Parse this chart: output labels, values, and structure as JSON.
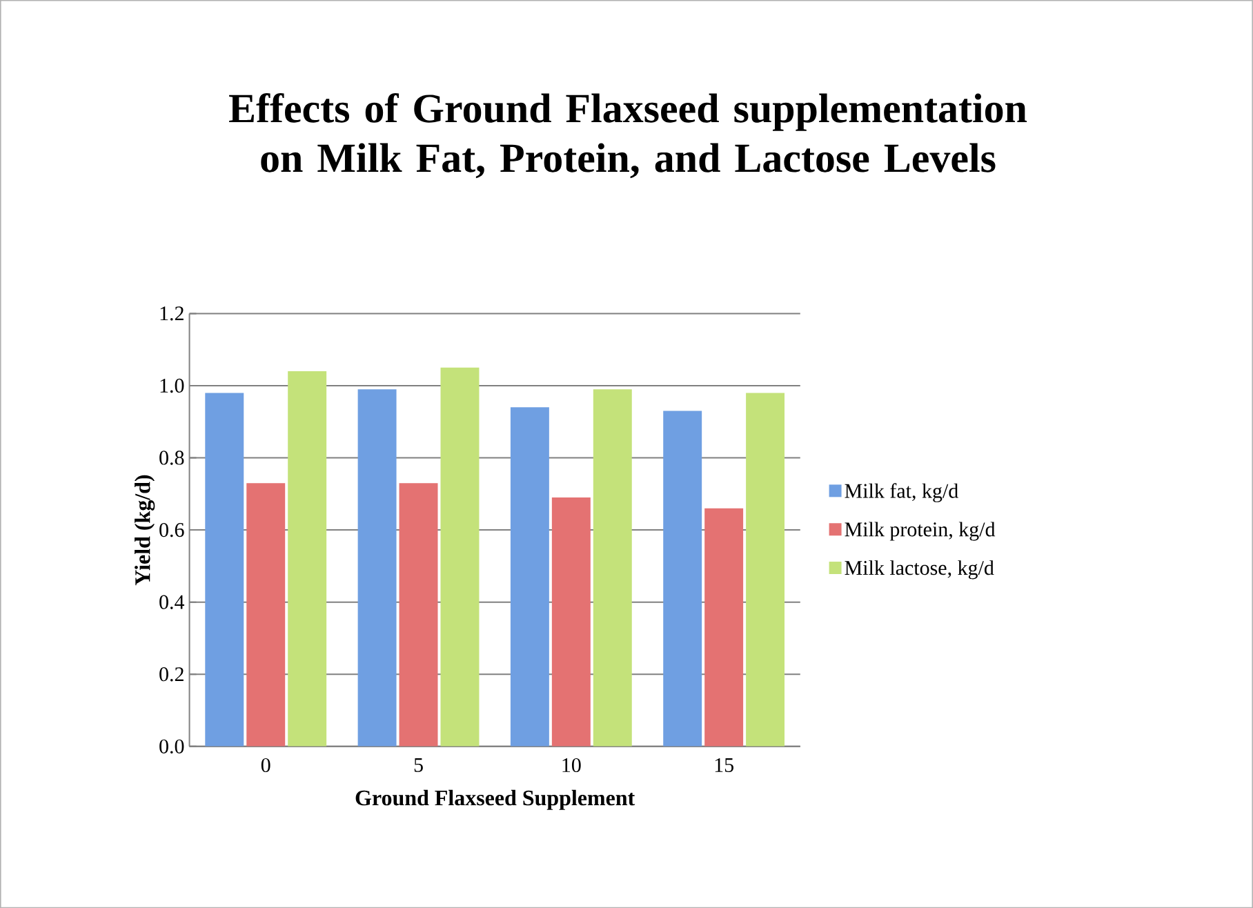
{
  "chart_data": {
    "type": "bar",
    "title": "Effects of Ground Flaxseed supplementation on Milk Fat, Protein, and Lactose Levels",
    "xlabel": "Ground Flaxseed Supplement",
    "ylabel": "Yield (kg/d)",
    "categories": [
      "0",
      "5",
      "10",
      "15"
    ],
    "series": [
      {
        "name": "Milk fat, kg/d",
        "color": "#6f9fe2",
        "values": [
          0.98,
          0.99,
          0.94,
          0.93
        ]
      },
      {
        "name": "Milk protein, kg/d",
        "color": "#e47272",
        "values": [
          0.73,
          0.73,
          0.69,
          0.66
        ]
      },
      {
        "name": "Milk lactose, kg/d",
        "color": "#c4e27a",
        "values": [
          1.04,
          1.05,
          0.99,
          0.98
        ]
      }
    ],
    "ylim": [
      0,
      1.2
    ],
    "yticks": [
      {
        "value": 0,
        "label": "0.0"
      },
      {
        "value": 0.2,
        "label": "0.2"
      },
      {
        "value": 0.4,
        "label": "0.4"
      },
      {
        "value": 0.6,
        "label": "0.6"
      },
      {
        "value": 0.8,
        "label": "0.8"
      },
      {
        "value": 1.0,
        "label": "1.0"
      },
      {
        "value": 1.2,
        "label": "1.2"
      }
    ],
    "grid": "y",
    "legend": "right"
  }
}
